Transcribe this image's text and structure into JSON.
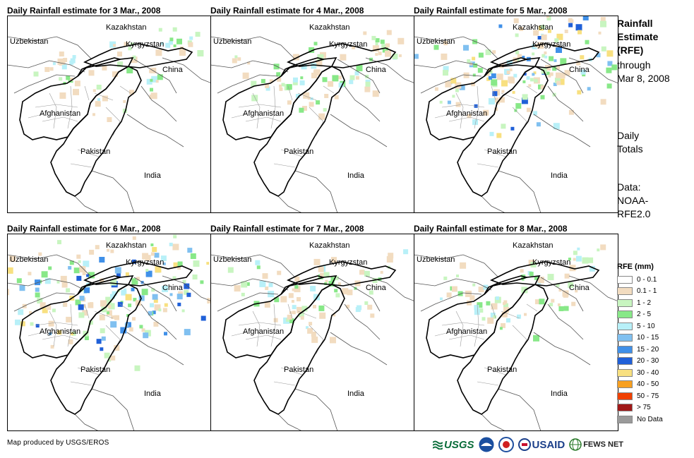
{
  "panels": [
    {
      "title": "Daily Rainfall estimate for 3 Mar., 2008"
    },
    {
      "title": "Daily Rainfall estimate for 4 Mar., 2008"
    },
    {
      "title": "Daily Rainfall estimate for 5 Mar., 2008"
    },
    {
      "title": "Daily Rainfall estimate for 6 Mar., 2008"
    },
    {
      "title": "Daily Rainfall estimate for 7 Mar., 2008"
    },
    {
      "title": "Daily Rainfall estimate for 8 Mar., 2008"
    }
  ],
  "map_labels": {
    "kazakhstan": "Kazakhstan",
    "uzbekistan": "Uzbekistan",
    "kyrgyzstan": "Kyrgyzstan",
    "china": "China",
    "afghanistan": "Afghanistan",
    "pakistan": "Pakistan",
    "india": "India"
  },
  "sidebar": {
    "title_lines": [
      "Rainfall",
      "Estimate",
      "(RFE)"
    ],
    "through_lines": [
      "through",
      "Mar 8, 2008"
    ],
    "daily_lines": [
      "Daily",
      "Totals"
    ],
    "data_lines": [
      "Data:",
      "NOAA-",
      "RFE2.0"
    ]
  },
  "legend": {
    "title": "RFE (mm)",
    "items": [
      {
        "label": "0 - 0.1",
        "color": "#ffffff"
      },
      {
        "label": "0.1 - 1",
        "color": "#f2dcc0"
      },
      {
        "label": "1 - 2",
        "color": "#c8f5c0"
      },
      {
        "label": "2 - 5",
        "color": "#88e888"
      },
      {
        "label": "5 - 10",
        "color": "#b8f0f8"
      },
      {
        "label": "10 - 15",
        "color": "#80c0f0"
      },
      {
        "label": "15 - 20",
        "color": "#4090e8"
      },
      {
        "label": "20 - 30",
        "color": "#2060d8"
      },
      {
        "label": "30 - 40",
        "color": "#f8e080"
      },
      {
        "label": "40 - 50",
        "color": "#f8a020"
      },
      {
        "label": "50 - 75",
        "color": "#f04000"
      },
      {
        "label": "> 75",
        "color": "#a01818"
      },
      {
        "label": "No Data",
        "color": "#9a9a9a"
      }
    ]
  },
  "credit": "Map produced by USGS/EROS",
  "logos": {
    "usgs": "USGS",
    "usaid": "USAID",
    "fews": "FEWS NET"
  },
  "rain_intensity": [
    0.25,
    0.35,
    0.85,
    1.0,
    0.35,
    0.3
  ]
}
